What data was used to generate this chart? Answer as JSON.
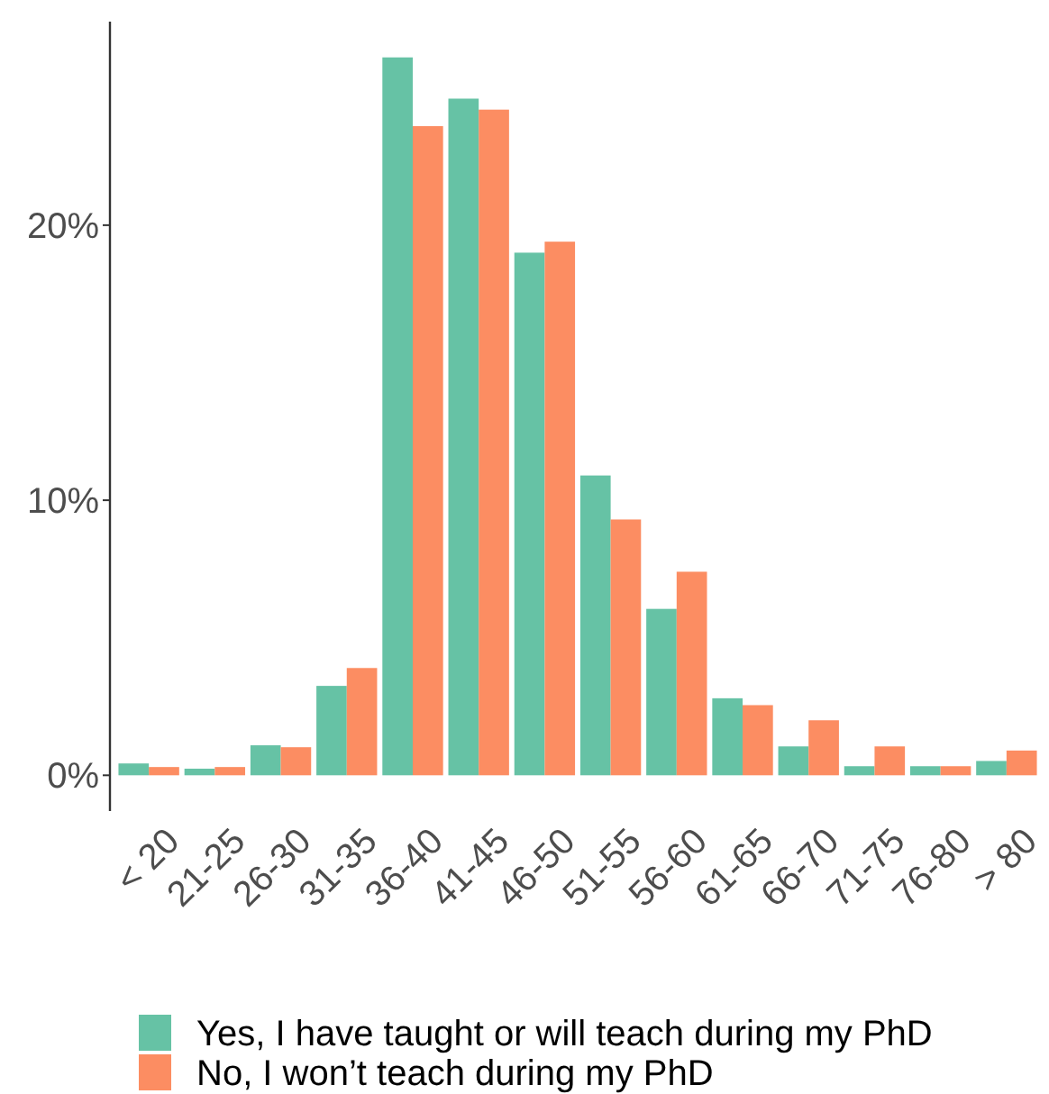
{
  "chart_data": {
    "type": "bar",
    "categories": [
      "< 20",
      "21-25",
      "26-30",
      "31-35",
      "36-40",
      "41-45",
      "46-50",
      "51-55",
      "56-60",
      "61-65",
      "66-70",
      "71-75",
      "76-80",
      "> 80"
    ],
    "series": [
      {
        "name": "Yes, I have taught or will teach during my PhD",
        "color": "#66c2a5",
        "values": [
          0.43,
          0.24,
          1.09,
          3.25,
          26.1,
          24.6,
          19.0,
          10.9,
          6.05,
          2.8,
          1.05,
          0.33,
          0.33,
          0.52
        ]
      },
      {
        "name": "No, I won’t teach during my PhD",
        "color": "#fc8d62",
        "values": [
          0.3,
          0.3,
          1.02,
          3.9,
          23.6,
          24.2,
          19.4,
          9.3,
          7.4,
          2.55,
          2.0,
          1.05,
          0.33,
          0.9
        ]
      }
    ],
    "ylim": [
      -1.3,
      27.4
    ],
    "yticks": [
      {
        "value": 0,
        "label": "0%"
      },
      {
        "value": 10,
        "label": "10%"
      },
      {
        "value": 20,
        "label": "20%"
      }
    ],
    "grid": false,
    "legend": "bottom"
  }
}
